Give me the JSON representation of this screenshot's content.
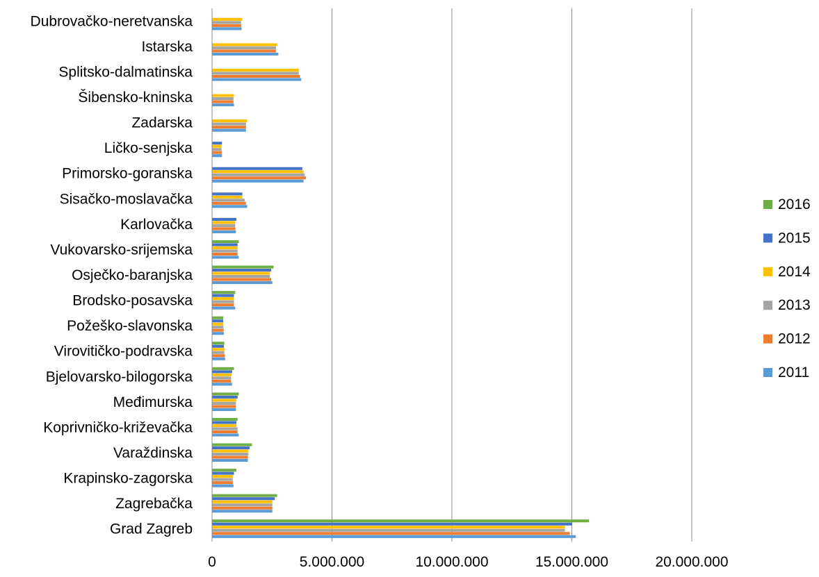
{
  "chart_data": {
    "type": "bar",
    "orientation": "horizontal",
    "title": "",
    "xlabel": "",
    "ylabel": "",
    "xlim": [
      0,
      20000000
    ],
    "x_ticks": [
      0,
      5000000,
      10000000,
      15000000,
      20000000
    ],
    "x_tick_labels": [
      "0",
      "5.000.000",
      "10.000.000",
      "15.000.000",
      "20.000.000"
    ],
    "grid": "vertical",
    "legend_position": "right",
    "categories": [
      "Dubrovačko-neretvanska",
      "Istarska",
      "Splitsko-dalmatinska",
      "Šibensko-kninska",
      "Zadarska",
      "Ličko-senjska",
      "Primorsko-goranska",
      "Sisačko-moslavačka",
      "Karlovačka",
      "Vukovarsko-srijemska",
      "Osječko-baranjska",
      "Brodsko-posavska",
      "Požeško-slavonska",
      "Virovitičko-podravska",
      "Bjelovarsko-bilogorska",
      "Međimurska",
      "Koprivničko-križevačka",
      "Varaždinska",
      "Krapinsko-zagorska",
      "Zagrebačka",
      "Grad Zagreb"
    ],
    "series": [
      {
        "name": "2016",
        "color": "#70AD47",
        "values": [
          0,
          0,
          0,
          0,
          0,
          0,
          0,
          0,
          0,
          1100000,
          2550000,
          950000,
          450000,
          500000,
          900000,
          1100000,
          1050000,
          1650000,
          1000000,
          2700000,
          15700000
        ]
      },
      {
        "name": "2015",
        "color": "#4472C4",
        "values": [
          0,
          0,
          0,
          0,
          0,
          400000,
          3750000,
          1250000,
          1000000,
          1050000,
          2450000,
          900000,
          450000,
          480000,
          820000,
          1050000,
          1000000,
          1550000,
          900000,
          2600000,
          15000000
        ]
      },
      {
        "name": "2014",
        "color": "#FFC000",
        "values": [
          1250000,
          2700000,
          3600000,
          900000,
          1450000,
          380000,
          3800000,
          1250000,
          950000,
          1050000,
          2400000,
          900000,
          450000,
          500000,
          800000,
          1000000,
          1000000,
          1500000,
          850000,
          2500000,
          14700000
        ]
      },
      {
        "name": "2013",
        "color": "#A5A5A5",
        "values": [
          1200000,
          2650000,
          3600000,
          880000,
          1400000,
          380000,
          3850000,
          1350000,
          950000,
          1050000,
          2400000,
          900000,
          460000,
          500000,
          780000,
          980000,
          1050000,
          1500000,
          850000,
          2500000,
          14700000
        ]
      },
      {
        "name": "2012",
        "color": "#ED7D31",
        "values": [
          1200000,
          2650000,
          3650000,
          880000,
          1400000,
          390000,
          3900000,
          1400000,
          960000,
          1050000,
          2450000,
          900000,
          470000,
          520000,
          780000,
          980000,
          1050000,
          1480000,
          850000,
          2500000,
          14900000
        ]
      },
      {
        "name": "2011",
        "color": "#5B9BD5",
        "values": [
          1220000,
          2750000,
          3700000,
          900000,
          1400000,
          400000,
          3800000,
          1450000,
          980000,
          1100000,
          2500000,
          950000,
          480000,
          530000,
          820000,
          980000,
          1100000,
          1480000,
          880000,
          2500000,
          15150000
        ]
      }
    ]
  }
}
